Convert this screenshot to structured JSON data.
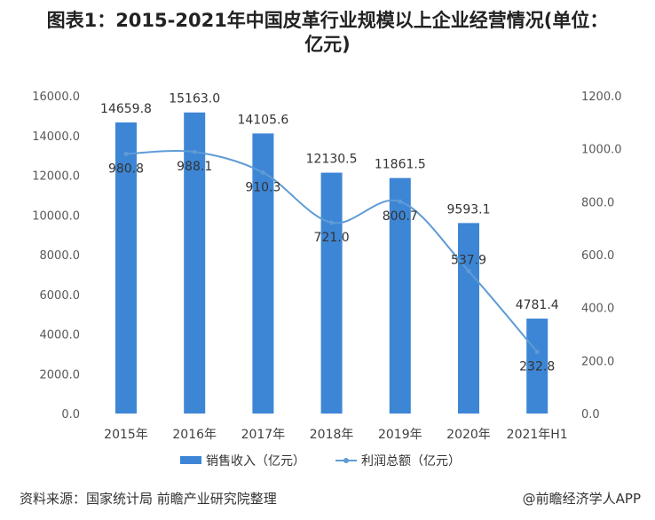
{
  "title": "图表1：2015-2021年中国皮革行业规模以上企业经营情况(单位：亿元)",
  "chart_data": {
    "type": "bar",
    "categories": [
      "2015年",
      "2016年",
      "2017年",
      "2018年",
      "2019年",
      "2020年",
      "2021年H1"
    ],
    "series": [
      {
        "name": "销售收入（亿元）",
        "type": "bar",
        "axis": "left",
        "values": [
          14659.8,
          15163.0,
          14105.6,
          12130.5,
          11861.5,
          9593.1,
          4781.4
        ],
        "labels": [
          "14659.8",
          "15163.0",
          "14105.6",
          "12130.5",
          "11861.5",
          "9593.1",
          "4781.4"
        ]
      },
      {
        "name": "利润总额（亿元）",
        "type": "line",
        "axis": "right",
        "smooth": true,
        "values": [
          980.8,
          988.1,
          910.3,
          721.0,
          800.7,
          537.9,
          232.8
        ],
        "labels": [
          "980.8",
          "988.1",
          "910.3",
          "721.0",
          "800.7",
          "537.9",
          "232.8"
        ]
      }
    ],
    "y_left": {
      "range": [
        0,
        16000
      ],
      "ticks": [
        0,
        2000,
        4000,
        6000,
        8000,
        10000,
        12000,
        14000,
        16000
      ],
      "tick_labels": [
        "0.0",
        "2000.0",
        "4000.0",
        "6000.0",
        "8000.0",
        "10000.0",
        "12000.0",
        "14000.0",
        "16000.0"
      ]
    },
    "y_right": {
      "range": [
        0,
        1200
      ],
      "ticks": [
        0,
        200,
        400,
        600,
        800,
        1000,
        1200
      ],
      "tick_labels": [
        "0.0",
        "200.0",
        "400.0",
        "600.0",
        "800.0",
        "1000.0",
        "1200.0"
      ]
    },
    "grid": false,
    "legend": "bottom",
    "colors": {
      "bar": "#3d86d5",
      "line": "#5e9bd6",
      "text": "#333333",
      "axis_text": "#595959"
    }
  },
  "footer": {
    "source": "资料来源：国家统计局 前瞻产业研究院整理",
    "credit": "@前瞻经济学人APP"
  }
}
